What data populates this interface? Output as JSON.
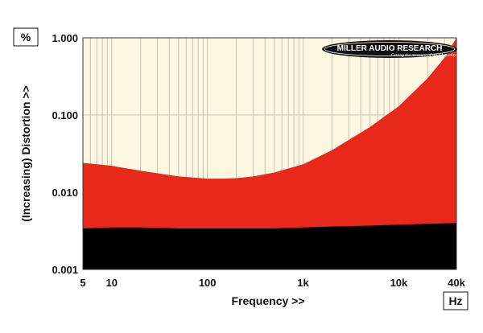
{
  "chart_data": {
    "type": "area",
    "xscale": "log",
    "yscale": "log",
    "xlim": [
      5,
      40000
    ],
    "ylim": [
      0.001,
      1.0
    ],
    "x_ticks": [
      "5",
      "10",
      "100",
      "1k",
      "10k",
      "40k"
    ],
    "y_ticks": [
      "1.000",
      "0.100",
      "0.010",
      "0.001"
    ],
    "xlabel": "Frequency >>",
    "ylabel": "(Increasing) Distortion >>",
    "x_unit": "Hz",
    "y_unit": "%",
    "grid": true,
    "series": [
      {
        "color": "#e8281a",
        "x": [
          5,
          10,
          20,
          50,
          100,
          150,
          200,
          300,
          500,
          1000,
          2000,
          5000,
          10000,
          20000,
          30000,
          40000
        ],
        "values": [
          0.024,
          0.022,
          0.019,
          0.016,
          0.015,
          0.015,
          0.0152,
          0.016,
          0.018,
          0.023,
          0.035,
          0.07,
          0.13,
          0.3,
          0.55,
          1.0
        ]
      },
      {
        "color": "#000000",
        "x": [
          5,
          10,
          20,
          50,
          100,
          200,
          500,
          1000,
          2000,
          5000,
          10000,
          20000,
          40000
        ],
        "values": [
          0.0034,
          0.0035,
          0.0035,
          0.0034,
          0.0034,
          0.0034,
          0.0034,
          0.0035,
          0.0036,
          0.0037,
          0.0038,
          0.0039,
          0.004
        ]
      }
    ]
  },
  "logo": {
    "brand": "MILLER AUDIO RESEARCH",
    "tagline": "Getting the measure of sound quality"
  },
  "colors": {
    "plot_background": "#fbf7e1",
    "grid": "#c8c4b2",
    "series_high": "#e8281a",
    "series_low": "#000000"
  }
}
